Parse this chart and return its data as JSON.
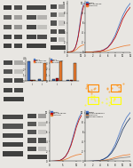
{
  "bg_color": "#e8e6e2",
  "wb_bg": "#c8c4bc",
  "wb_band": "#1a1a1a",
  "wb_light": "#888880",
  "bar_blue": "#4472c4",
  "bar_red": "#c00000",
  "bar_orange": "#ed7d31",
  "line_blue": "#4472c4",
  "line_red": "#c00000",
  "line_orange": "#ed7d31",
  "line_navy": "#1f3864",
  "line_gray": "#808080",
  "fluor_bg": "#0a0a00",
  "fluor_yellow_box": "#ffff00",
  "fluor_orange_box": "#ff8800",
  "mic_gray": "#606060",
  "legend_top": [
    "DMSO",
    "RNA-4205702",
    "Crizotinib"
  ],
  "legend_bot": [
    "DMSO",
    "Single guide702",
    "Crizotinib",
    "Placebo group"
  ],
  "panels": {
    "A_bands": [
      [
        0.08,
        0.82,
        0.36,
        0.09,
        0.85
      ],
      [
        0.54,
        0.82,
        0.36,
        0.09,
        0.75
      ],
      [
        0.08,
        0.63,
        0.36,
        0.09,
        0.65
      ],
      [
        0.54,
        0.63,
        0.36,
        0.09,
        0.35
      ],
      [
        0.08,
        0.44,
        0.36,
        0.09,
        0.7
      ],
      [
        0.54,
        0.44,
        0.36,
        0.09,
        0.4
      ],
      [
        0.08,
        0.25,
        0.36,
        0.09,
        0.8
      ],
      [
        0.54,
        0.25,
        0.36,
        0.09,
        0.78
      ],
      [
        0.08,
        0.08,
        0.36,
        0.09,
        0.82
      ],
      [
        0.54,
        0.08,
        0.36,
        0.09,
        0.8
      ]
    ],
    "B_bands": [
      [
        0.05,
        0.82,
        0.88,
        0.1,
        0.8
      ],
      [
        0.05,
        0.63,
        0.42,
        0.09,
        0.75
      ],
      [
        0.52,
        0.63,
        0.42,
        0.09,
        0.25
      ],
      [
        0.05,
        0.44,
        0.42,
        0.09,
        0.78
      ],
      [
        0.52,
        0.44,
        0.42,
        0.09,
        0.18
      ],
      [
        0.05,
        0.25,
        0.42,
        0.09,
        0.8
      ],
      [
        0.52,
        0.25,
        0.42,
        0.09,
        0.75
      ],
      [
        0.05,
        0.08,
        0.88,
        0.09,
        0.82
      ]
    ],
    "C_bands": [
      [
        0.08,
        0.84,
        0.38,
        0.09,
        0.78
      ],
      [
        0.54,
        0.84,
        0.38,
        0.09,
        0.35
      ],
      [
        0.08,
        0.68,
        0.38,
        0.09,
        0.7
      ],
      [
        0.54,
        0.68,
        0.38,
        0.09,
        0.18
      ],
      [
        0.08,
        0.52,
        0.38,
        0.09,
        0.72
      ],
      [
        0.54,
        0.52,
        0.38,
        0.09,
        0.15
      ],
      [
        0.08,
        0.36,
        0.38,
        0.09,
        0.75
      ],
      [
        0.54,
        0.36,
        0.38,
        0.09,
        0.72
      ],
      [
        0.08,
        0.2,
        0.38,
        0.09,
        0.78
      ],
      [
        0.54,
        0.2,
        0.38,
        0.09,
        0.2
      ],
      [
        0.08,
        0.05,
        0.88,
        0.09,
        0.82
      ]
    ],
    "E_bands": [
      [
        0.08,
        0.82,
        0.38,
        0.09,
        0.78
      ],
      [
        0.54,
        0.82,
        0.38,
        0.09,
        0.3
      ],
      [
        0.08,
        0.64,
        0.38,
        0.09,
        0.72
      ],
      [
        0.54,
        0.64,
        0.38,
        0.09,
        0.18
      ],
      [
        0.08,
        0.46,
        0.38,
        0.09,
        0.78
      ],
      [
        0.54,
        0.46,
        0.38,
        0.09,
        0.76
      ],
      [
        0.08,
        0.28,
        0.38,
        0.09,
        0.8
      ],
      [
        0.54,
        0.28,
        0.38,
        0.09,
        0.78
      ],
      [
        0.08,
        0.1,
        0.88,
        0.09,
        0.82
      ]
    ],
    "H_bands": [
      [
        0.05,
        0.82,
        0.88,
        0.09,
        0.78
      ],
      [
        0.05,
        0.64,
        0.88,
        0.09,
        0.72
      ],
      [
        0.05,
        0.46,
        0.88,
        0.09,
        0.78
      ],
      [
        0.05,
        0.28,
        0.88,
        0.09,
        0.8
      ],
      [
        0.05,
        0.1,
        0.88,
        0.09,
        0.82
      ]
    ],
    "I_bands": [
      [
        0.08,
        0.84,
        0.38,
        0.09,
        0.78
      ],
      [
        0.54,
        0.84,
        0.38,
        0.09,
        0.35
      ],
      [
        0.08,
        0.68,
        0.38,
        0.09,
        0.7
      ],
      [
        0.54,
        0.68,
        0.38,
        0.09,
        0.18
      ],
      [
        0.08,
        0.52,
        0.38,
        0.09,
        0.72
      ],
      [
        0.54,
        0.52,
        0.38,
        0.09,
        0.15
      ],
      [
        0.08,
        0.36,
        0.38,
        0.09,
        0.75
      ],
      [
        0.54,
        0.36,
        0.38,
        0.09,
        0.72
      ],
      [
        0.08,
        0.2,
        0.38,
        0.09,
        0.78
      ],
      [
        0.54,
        0.2,
        0.38,
        0.09,
        0.2
      ],
      [
        0.08,
        0.05,
        0.88,
        0.08,
        0.82
      ]
    ]
  },
  "bar_F": {
    "g1": [
      3.5,
      0.15,
      0.12
    ],
    "g2": [
      0.35,
      0.08,
      3.1
    ]
  },
  "bar_G": {
    "g1": [
      0.35,
      0.45,
      3.4
    ],
    "g2": [
      0.25,
      0.12,
      3.0
    ]
  },
  "line_x": [
    0,
    1,
    2,
    3,
    4,
    5,
    6,
    7,
    8,
    9,
    10,
    11,
    12
  ],
  "line_D1_blue": [
    0,
    0.02,
    0.05,
    0.1,
    0.2,
    0.5,
    1.0,
    2.0,
    3.5,
    5.5,
    7.5,
    9.0,
    10.0
  ],
  "line_D1_red": [
    0,
    0.02,
    0.05,
    0.1,
    0.2,
    0.5,
    1.0,
    1.9,
    3.2,
    5.0,
    7.0,
    8.5,
    9.5
  ],
  "line_D1_orange": [
    0,
    0.01,
    0.02,
    0.05,
    0.1,
    0.2,
    0.4,
    0.6,
    0.9,
    1.1,
    1.3,
    1.4,
    1.5
  ],
  "line_D2_blue": [
    0,
    0.02,
    0.05,
    0.1,
    0.2,
    0.5,
    1.0,
    2.0,
    3.5,
    5.5,
    7.5,
    9.0,
    10.0
  ],
  "line_D2_red": [
    0,
    0.02,
    0.04,
    0.09,
    0.18,
    0.45,
    0.9,
    1.8,
    3.0,
    4.8,
    6.8,
    8.2,
    9.2
  ],
  "line_D2_orange": [
    0,
    0.01,
    0.02,
    0.04,
    0.09,
    0.18,
    0.35,
    0.55,
    0.8,
    1.0,
    1.2,
    1.35,
    1.45
  ],
  "line_J_blue": [
    0,
    0.02,
    0.05,
    0.1,
    0.2,
    0.5,
    1.0,
    2.0,
    3.5,
    5.5,
    7.5,
    9.0,
    10.0
  ],
  "line_J_red": [
    0,
    0.02,
    0.05,
    0.1,
    0.2,
    0.5,
    1.0,
    1.9,
    3.2,
    5.0,
    7.0,
    8.5,
    9.5
  ],
  "line_J_orange": [
    0,
    0.01,
    0.02,
    0.05,
    0.1,
    0.2,
    0.4,
    0.6,
    0.9,
    1.1,
    1.3,
    1.4,
    1.5
  ],
  "line_K_blue": [
    0,
    0.02,
    0.05,
    0.1,
    0.2,
    0.5,
    1.0,
    2.0,
    3.5,
    5.5,
    7.5,
    9.0,
    10.0
  ],
  "line_K_navy": [
    0,
    0.02,
    0.04,
    0.09,
    0.18,
    0.45,
    0.9,
    1.7,
    2.9,
    4.6,
    6.5,
    7.9,
    8.9
  ],
  "line_K_orange": [
    0,
    0.01,
    0.02,
    0.04,
    0.09,
    0.18,
    0.35,
    0.55,
    0.8,
    1.0,
    1.2,
    1.3,
    1.4
  ],
  "line_K_gray": [
    0,
    0.01,
    0.01,
    0.03,
    0.06,
    0.12,
    0.22,
    0.35,
    0.5,
    0.65,
    0.75,
    0.82,
    0.9
  ]
}
